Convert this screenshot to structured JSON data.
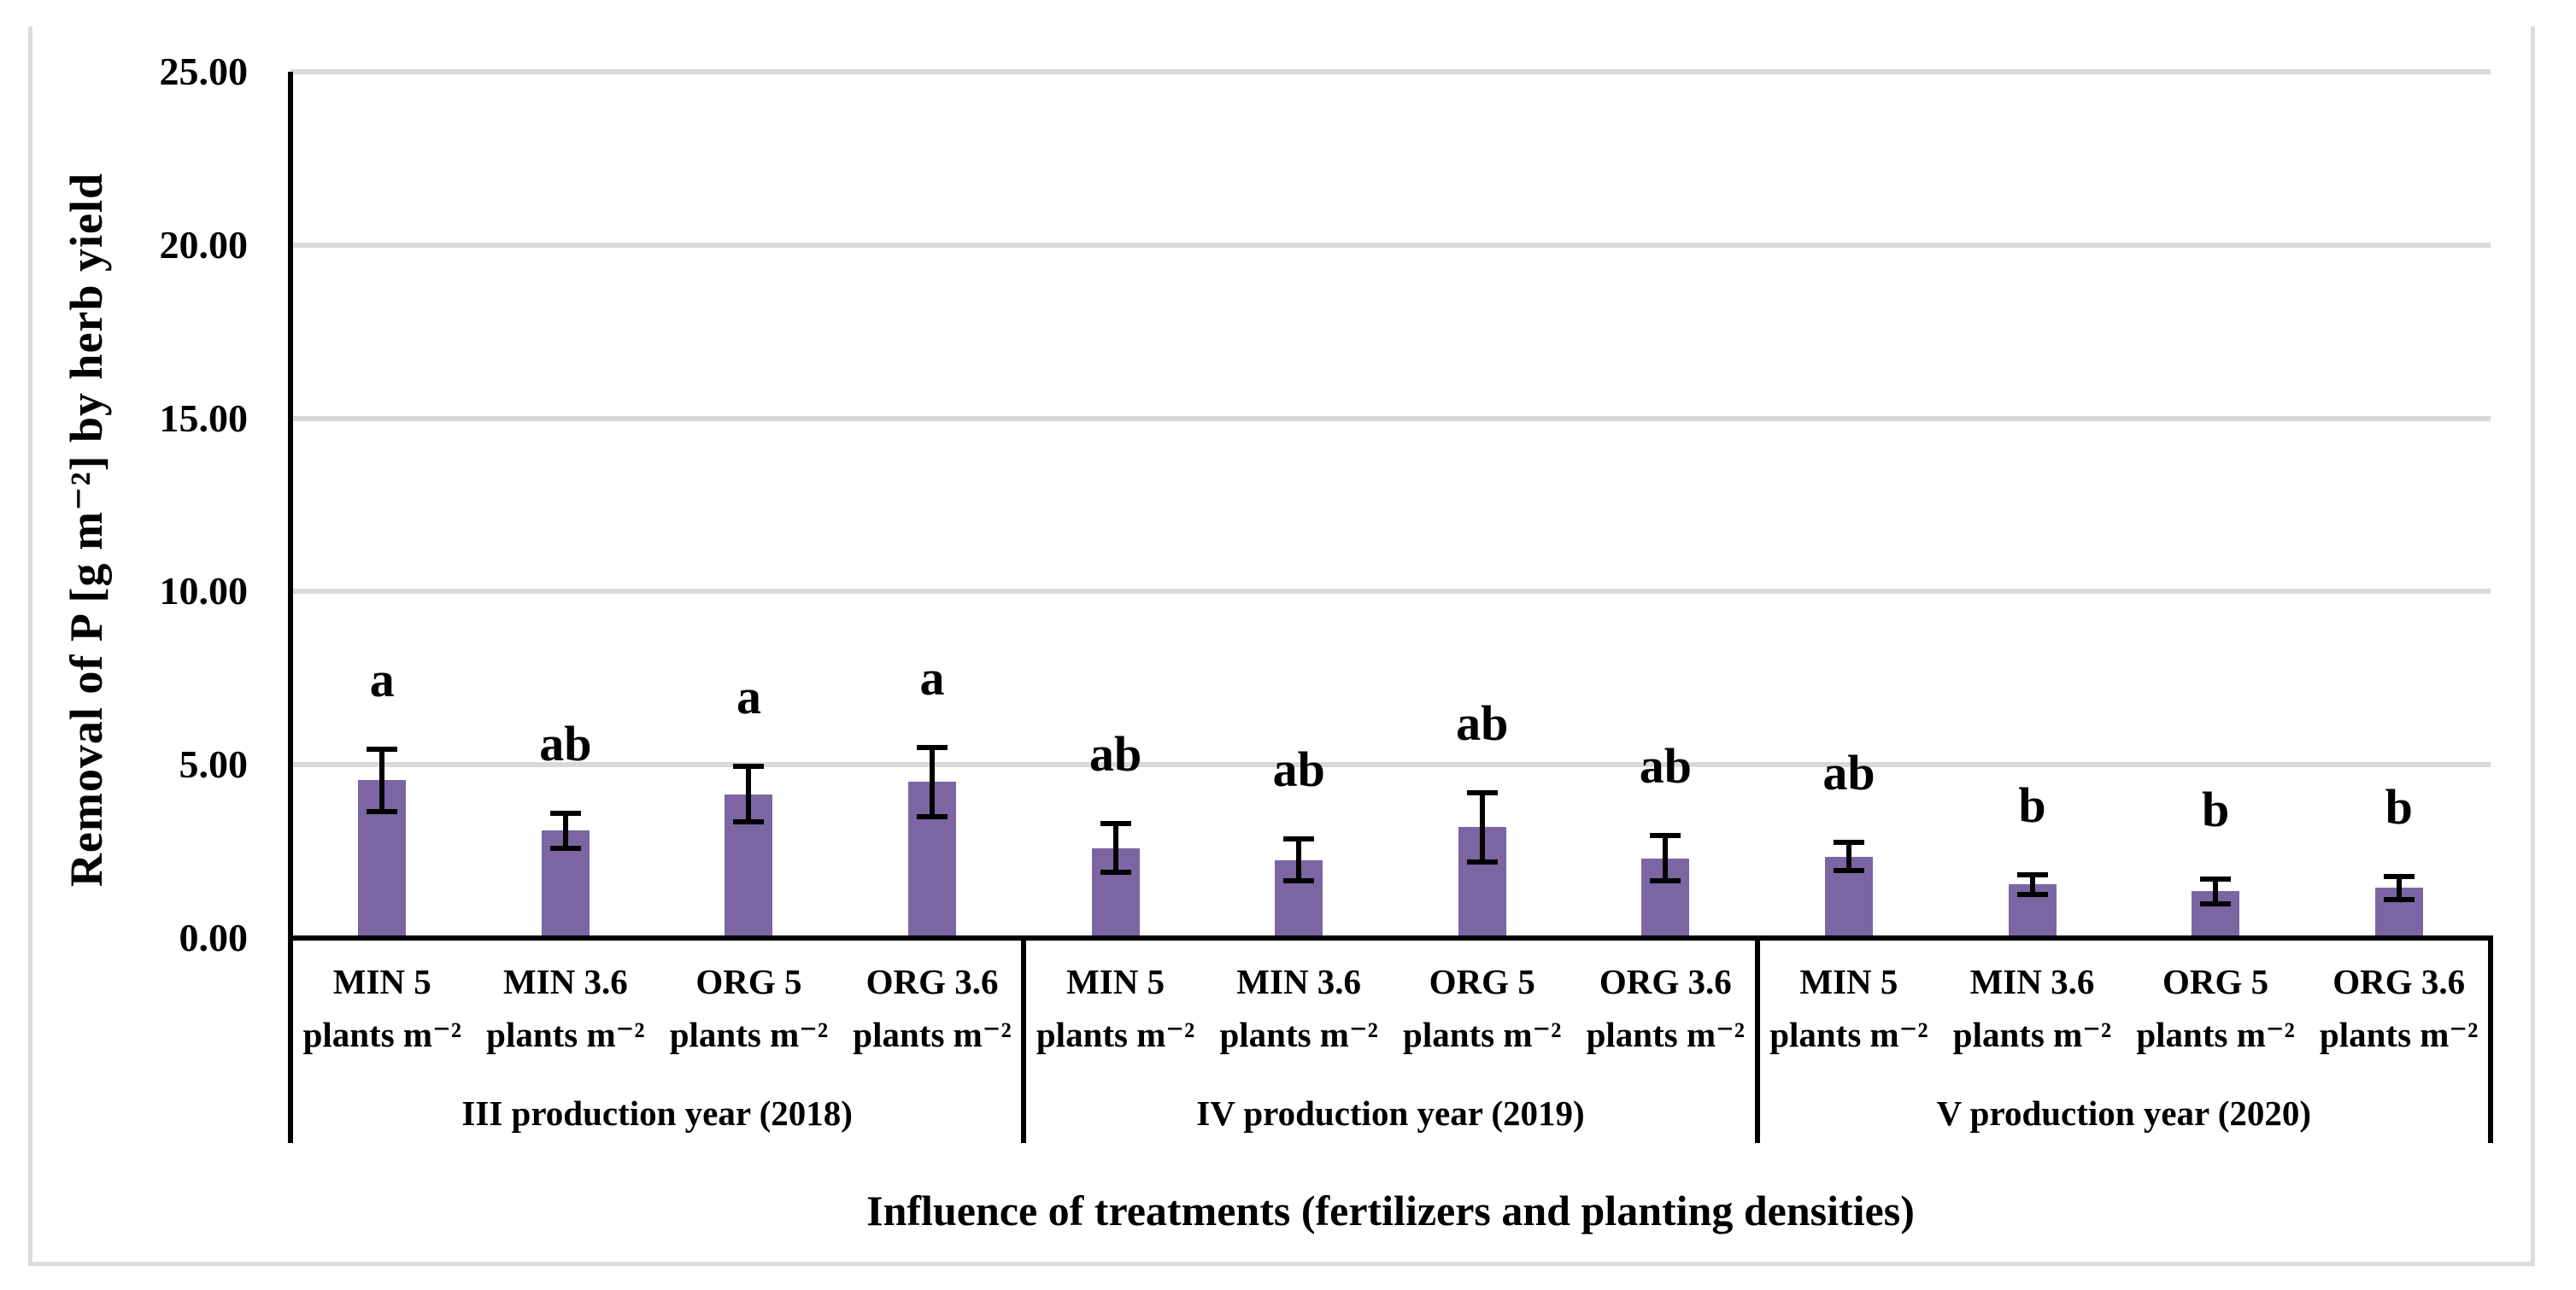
{
  "chart_data": {
    "type": "bar",
    "title": "",
    "xlabel": "Influence of treatments (fertilizers and planting densities)",
    "ylabel": "Removal of P [g m⁻²] by herb yield",
    "ylim": [
      0,
      25
    ],
    "ytick_values": [
      0,
      5,
      10,
      15,
      20,
      25
    ],
    "ytick_labels": [
      "0.00",
      "5.00",
      "10.00",
      "15.00",
      "20.00",
      "25.00"
    ],
    "grid": true,
    "legend": "none",
    "bar_color": "#7b66a3",
    "gridline_color": "#d9d9d9",
    "error_bar_color": "#000000",
    "category_line2": "plants m⁻²",
    "groups": [
      {
        "label": "III production year (2018)",
        "bars": [
          {
            "category": "MIN 5",
            "value": 4.55,
            "error": 0.9,
            "letter": "a"
          },
          {
            "category": "MIN 3.6",
            "value": 3.1,
            "error": 0.5,
            "letter": "ab"
          },
          {
            "category": "ORG 5",
            "value": 4.15,
            "error": 0.8,
            "letter": "a"
          },
          {
            "category": "ORG 3.6",
            "value": 4.5,
            "error": 1.0,
            "letter": "a"
          }
        ]
      },
      {
        "label": "IV production year (2019)",
        "bars": [
          {
            "category": "MIN 5",
            "value": 2.6,
            "error": 0.7,
            "letter": "ab"
          },
          {
            "category": "MIN 3.6",
            "value": 2.25,
            "error": 0.6,
            "letter": "ab"
          },
          {
            "category": "ORG 5",
            "value": 3.2,
            "error": 1.0,
            "letter": "ab"
          },
          {
            "category": "ORG 3.6",
            "value": 2.3,
            "error": 0.65,
            "letter": "ab"
          }
        ]
      },
      {
        "label": "V production year (2020)",
        "bars": [
          {
            "category": "MIN 5",
            "value": 2.35,
            "error": 0.4,
            "letter": "ab"
          },
          {
            "category": "MIN 3.6",
            "value": 1.55,
            "error": 0.28,
            "letter": "b"
          },
          {
            "category": "ORG 5",
            "value": 1.35,
            "error": 0.36,
            "letter": "b"
          },
          {
            "category": "ORG 3.6",
            "value": 1.45,
            "error": 0.33,
            "letter": "b"
          }
        ]
      }
    ]
  }
}
